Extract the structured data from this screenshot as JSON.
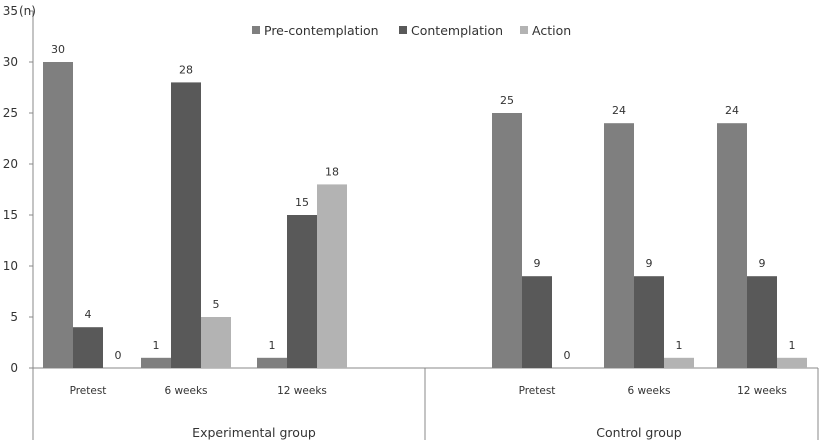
{
  "chart_data": {
    "type": "bar",
    "ylabel": "(n)",
    "ylim": [
      0,
      35
    ],
    "yticks": [
      0,
      5,
      10,
      15,
      20,
      25,
      30,
      35
    ],
    "grid": false,
    "legend_position": "top-center",
    "groups": [
      {
        "name": "Experimental group",
        "categories": [
          "Pretest",
          "6 weeks",
          "12 weeks"
        ]
      },
      {
        "name": "Control group",
        "categories": [
          "Pretest",
          "6 weeks",
          "12 weeks"
        ]
      }
    ],
    "series": [
      {
        "name": "Pre-contemplation",
        "color": "#7f7f7f",
        "values": [
          30,
          1,
          1,
          25,
          24,
          24
        ]
      },
      {
        "name": "Contemplation",
        "color": "#595959",
        "values": [
          4,
          28,
          15,
          9,
          9,
          9
        ]
      },
      {
        "name": "Action",
        "color": "#b3b3b3",
        "values": [
          0,
          5,
          18,
          0,
          1,
          1
        ]
      }
    ]
  }
}
